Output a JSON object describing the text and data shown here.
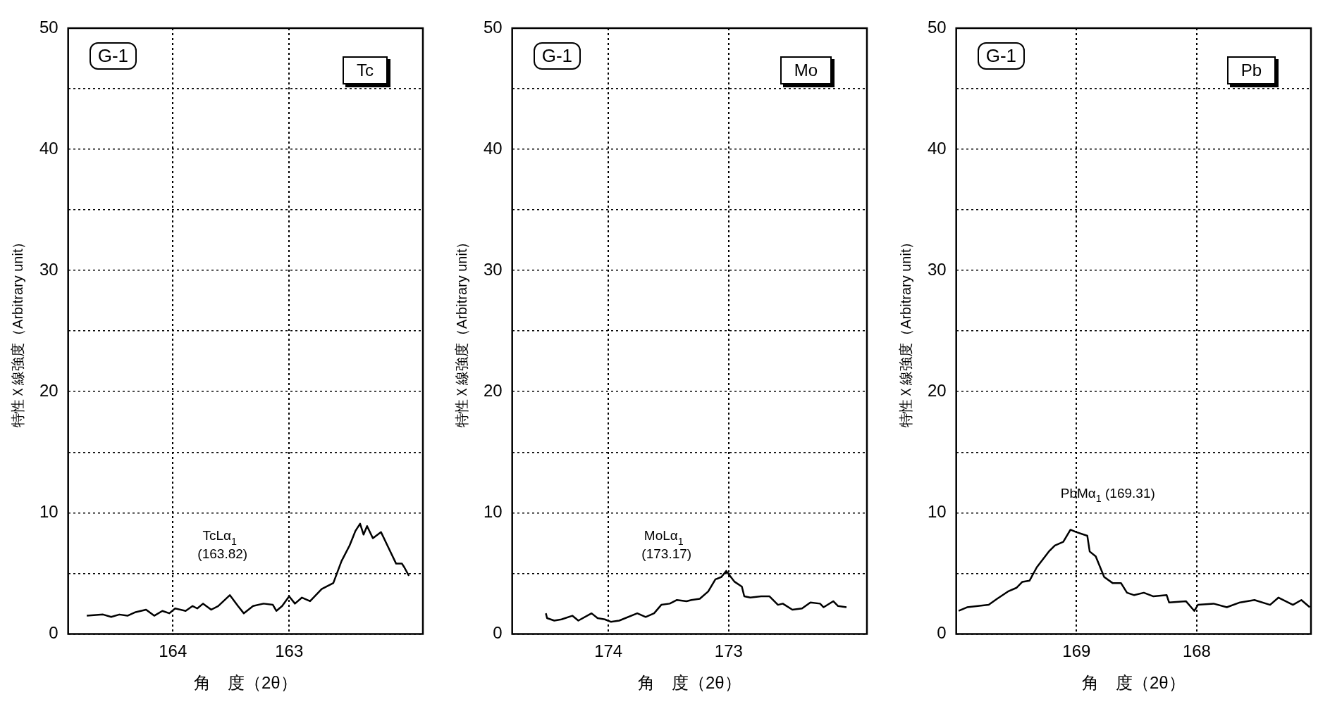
{
  "chart_data": [
    {
      "type": "line",
      "title": "Tc",
      "subtitle": "G-1",
      "xlabel": "角　度（2θ）",
      "ylabel": "特性Ｘ線強度（Arbitrary unit）",
      "color": "#000000",
      "marker": "none",
      "grid": true,
      "x": [
        164.74,
        164.6,
        164.53,
        164.46,
        164.39,
        164.32,
        164.23,
        164.16,
        164.09,
        164.03,
        163.98,
        163.89,
        163.83,
        163.79,
        163.74,
        163.67,
        163.61,
        163.51,
        163.44,
        163.39,
        163.31,
        163.22,
        163.14,
        163.11,
        163.06,
        163.0,
        162.95,
        162.89,
        162.82,
        162.72,
        162.62,
        162.55,
        162.48,
        162.43,
        162.39,
        162.36,
        162.33,
        162.28,
        162.21,
        162.14,
        162.08,
        162.03,
        162.01,
        161.97
      ],
      "values": [
        1.5,
        1.6,
        1.4,
        1.6,
        1.5,
        1.8,
        2.0,
        1.5,
        1.9,
        1.7,
        2.1,
        1.9,
        2.3,
        2.1,
        2.5,
        2.0,
        2.3,
        3.2,
        2.3,
        1.7,
        2.3,
        2.5,
        2.4,
        1.9,
        2.3,
        3.1,
        2.5,
        3.0,
        2.7,
        3.7,
        4.2,
        6.0,
        7.3,
        8.5,
        9.1,
        8.2,
        8.9,
        7.9,
        8.4,
        7.0,
        5.8,
        5.8,
        5.5,
        4.8
      ],
      "xlim": [
        164.9,
        161.85
      ],
      "xticks": [
        164,
        163
      ],
      "ylim": [
        0,
        50
      ],
      "yticks": [
        0,
        {
          "value": 5,
          "label": null
        },
        10,
        {
          "value": 15,
          "label": null
        },
        20,
        {
          "value": 25,
          "label": null
        },
        30,
        {
          "value": 35,
          "label": null
        },
        40,
        {
          "value": 45,
          "label": null
        },
        50
      ],
      "annotations": [
        "TcLα$_{1}$\n (163.82)"
      ]
    },
    {
      "type": "line",
      "title": "Mo",
      "subtitle": "G-1",
      "xlabel": "角　度（2θ）",
      "ylabel": "特性Ｘ線強度（Arbitrary unit）",
      "color": "#000000",
      "marker": "none",
      "grid": true,
      "x": [
        174.52,
        174.51,
        174.45,
        174.39,
        174.3,
        174.25,
        174.14,
        174.09,
        174.03,
        173.98,
        173.91,
        173.76,
        173.69,
        173.62,
        173.56,
        173.49,
        173.43,
        173.35,
        173.31,
        173.24,
        173.17,
        173.11,
        173.06,
        173.02,
        172.99,
        172.95,
        172.89,
        172.87,
        172.82,
        172.73,
        172.66,
        172.59,
        172.55,
        172.47,
        172.39,
        172.32,
        172.24,
        172.21,
        172.13,
        172.09,
        172.02
      ],
      "values": [
        1.7,
        1.3,
        1.1,
        1.2,
        1.5,
        1.1,
        1.7,
        1.3,
        1.2,
        1.0,
        1.1,
        1.7,
        1.4,
        1.7,
        2.4,
        2.5,
        2.8,
        2.7,
        2.8,
        2.9,
        3.5,
        4.5,
        4.7,
        5.2,
        4.8,
        4.3,
        3.9,
        3.1,
        3.0,
        3.1,
        3.1,
        2.4,
        2.5,
        2.0,
        2.1,
        2.6,
        2.5,
        2.2,
        2.7,
        2.3,
        2.2
      ],
      "xlim": [
        174.8,
        171.85
      ],
      "xticks": [
        174,
        173
      ],
      "ylim": [
        0,
        50
      ],
      "yticks": [
        0,
        {
          "value": 5,
          "label": null
        },
        10,
        {
          "value": 15,
          "label": null
        },
        20,
        {
          "value": 25,
          "label": null
        },
        30,
        {
          "value": 35,
          "label": null
        },
        40,
        {
          "value": 45,
          "label": null
        },
        50
      ],
      "annotations": [
        "MoLα$_{1}$\n (173.17)"
      ]
    },
    {
      "type": "line",
      "title": "Pb",
      "subtitle": "G-1",
      "xlabel": "角　度（2θ）",
      "ylabel": "特性Ｘ線強度（Arbitrary unit）",
      "color": "#000000",
      "marker": "none",
      "grid": true,
      "x": [
        169.98,
        169.91,
        169.82,
        169.73,
        169.66,
        169.57,
        169.5,
        169.45,
        169.39,
        169.33,
        169.23,
        169.18,
        169.11,
        169.05,
        169.0,
        168.91,
        168.89,
        168.84,
        168.77,
        168.7,
        168.63,
        168.58,
        168.52,
        168.44,
        168.36,
        168.25,
        168.23,
        168.09,
        168.02,
        167.99,
        167.86,
        167.75,
        167.64,
        167.52,
        167.39,
        167.32,
        167.2,
        167.13,
        167.06
      ],
      "values": [
        1.9,
        2.2,
        2.3,
        2.4,
        2.9,
        3.5,
        3.8,
        4.3,
        4.4,
        5.5,
        6.8,
        7.3,
        7.6,
        8.6,
        8.4,
        8.1,
        6.8,
        6.4,
        4.7,
        4.2,
        4.2,
        3.4,
        3.2,
        3.4,
        3.1,
        3.2,
        2.6,
        2.7,
        1.9,
        2.4,
        2.5,
        2.2,
        2.6,
        2.8,
        2.4,
        3.0,
        2.4,
        2.8,
        2.2
      ],
      "xlim": [
        170.0,
        167.05
      ],
      "xticks": [
        169,
        168
      ],
      "ylim": [
        0,
        50
      ],
      "yticks": [
        0,
        {
          "value": 5,
          "label": null
        },
        10,
        {
          "value": 15,
          "label": null
        },
        20,
        {
          "value": 25,
          "label": null
        },
        30,
        {
          "value": 35,
          "label": null
        },
        40,
        {
          "value": 45,
          "label": null
        },
        50
      ],
      "annotations": [
        "PbMα$_{1}$ (169.31)"
      ]
    }
  ]
}
